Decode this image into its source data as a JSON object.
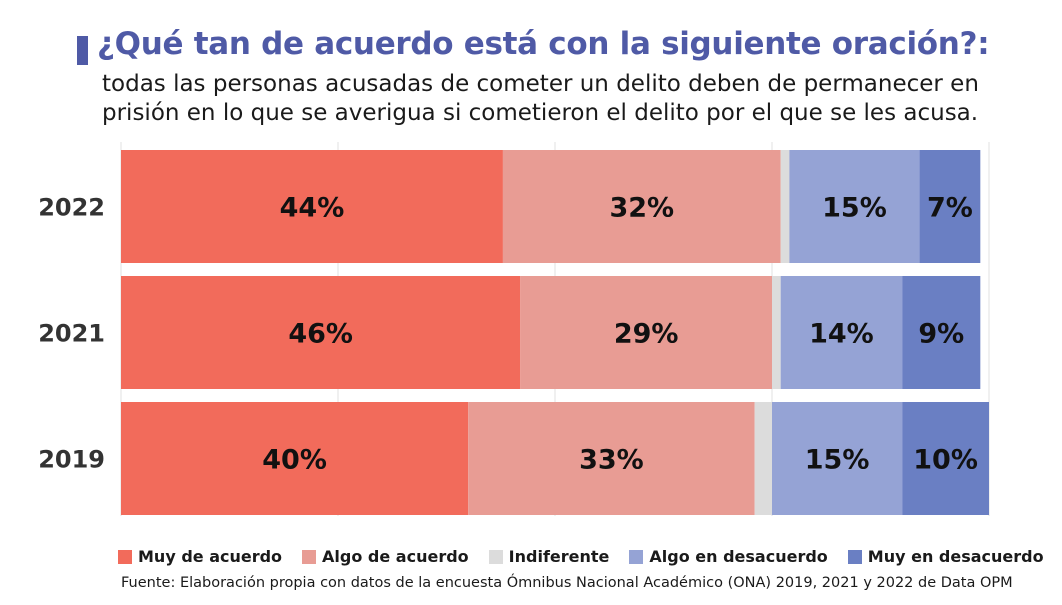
{
  "header": {
    "title": "¿Qué tan de acuerdo está con la siguiente oración?:",
    "subtitle_line1": "todas las personas acusadas de cometer un delito deben de permanecer en",
    "subtitle_line2": "prisión en lo que se averigua si cometieron el delito por el que se les acusa."
  },
  "footer": {
    "source": "Fuente: Elaboración propia con datos de la encuesta Ómnibus Nacional Académico (ONA) 2019, 2021 y 2022 de Data OPM"
  },
  "chart_data": {
    "type": "bar",
    "orientation": "horizontal",
    "stacked": true,
    "title": "¿Qué tan de acuerdo está con la siguiente oración?:",
    "xlabel": "",
    "ylabel": "",
    "xlim": [
      0,
      100
    ],
    "grid": true,
    "legend_position": "bottom",
    "categories": [
      "2022",
      "2021",
      "2019"
    ],
    "series": [
      {
        "name": "Muy de acuerdo",
        "color": "#f26b5b",
        "values": [
          44,
          46,
          40
        ],
        "labels": [
          "44%",
          "46%",
          "40%"
        ]
      },
      {
        "name": "Algo de acuerdo",
        "color": "#e89c94",
        "values": [
          32,
          29,
          33
        ],
        "labels": [
          "32%",
          "29%",
          "33%"
        ]
      },
      {
        "name": "Indiferente",
        "color": "#dcdcdc",
        "values": [
          1,
          1,
          2
        ],
        "labels": [
          "",
          "",
          ""
        ]
      },
      {
        "name": "Algo en desacuerdo",
        "color": "#95a3d5",
        "values": [
          15,
          14,
          15
        ],
        "labels": [
          "15%",
          "14%",
          "15%"
        ]
      },
      {
        "name": "Muy en desacuerdo",
        "color": "#6a7fc3",
        "values": [
          7,
          9,
          10
        ],
        "labels": [
          "7%",
          "9%",
          "10%"
        ]
      }
    ]
  }
}
